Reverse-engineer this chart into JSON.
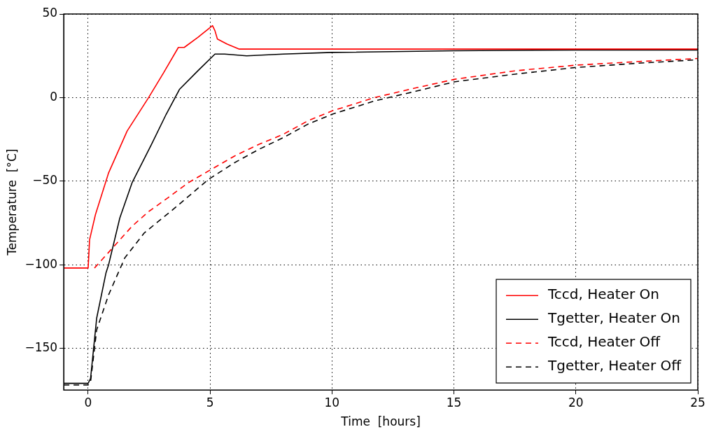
{
  "chart_data": {
    "type": "line",
    "xlabel": "Time  [hours]",
    "ylabel": "Temperature  [°C]",
    "xlim": [
      -1,
      25
    ],
    "ylim": [
      -175,
      50
    ],
    "xticks": [
      0,
      5,
      10,
      15,
      20,
      25
    ],
    "yticks": [
      -150,
      -100,
      -50,
      0,
      50
    ],
    "grid": true,
    "legend": "bottom right",
    "marker": "none",
    "series": [
      {
        "name": "Tccd, Heater On",
        "color": "#ff0000",
        "line_style": "solid",
        "x": [
          -1,
          0,
          0.06,
          0.3,
          0.84,
          1.6,
          2.48,
          3.1,
          3.7,
          3.94,
          4.5,
          5.1,
          5.2,
          5.3,
          5.7,
          6.2,
          10,
          15,
          20,
          25
        ],
        "values": [
          -102,
          -102,
          -85,
          -70,
          -45,
          -20,
          0,
          15,
          30,
          30,
          36,
          43,
          40,
          35,
          32,
          29,
          29,
          29,
          29,
          29
        ]
      },
      {
        "name": "Tgetter, Heater On",
        "color": "#000000",
        "line_style": "solid",
        "x": [
          -1,
          0,
          0.1,
          0.35,
          0.73,
          0.84,
          1.3,
          1.8,
          2.6,
          3.2,
          3.75,
          4.5,
          5.2,
          5.6,
          6.5,
          8,
          10,
          15,
          20,
          25
        ],
        "values": [
          -171,
          -171,
          -168,
          -132,
          -105,
          -100,
          -72,
          -51,
          -28,
          -10,
          5,
          16,
          26,
          26,
          25,
          26,
          27,
          28,
          28.5,
          28.5
        ]
      },
      {
        "name": "Tccd, Heater Off",
        "color": "#ff0000",
        "line_style": "dashed",
        "x": [
          0.26,
          1,
          1.8,
          2.5,
          3.27,
          4.1,
          4.93,
          6,
          7,
          8,
          9,
          10,
          11.75,
          13.5,
          15.05,
          17.5,
          20,
          22.5,
          25
        ],
        "values": [
          -102,
          -90,
          -77,
          -68,
          -60,
          -51,
          -44,
          -35,
          -28,
          -22,
          -14,
          -8,
          0,
          6,
          11,
          16,
          19.4,
          21.5,
          23.4
        ]
      },
      {
        "name": "Tgetter, Heater Off",
        "color": "#000000",
        "line_style": "dashed",
        "x": [
          -1,
          0,
          0.1,
          0.35,
          0.84,
          1.5,
          2.3,
          3.56,
          4.93,
          6,
          7,
          8,
          9,
          10,
          11.75,
          13.5,
          15.05,
          17.5,
          20,
          22.5,
          25
        ],
        "values": [
          -172,
          -172,
          -170,
          -139,
          -118,
          -96,
          -81,
          -66,
          -49,
          -39,
          -31,
          -24,
          -16,
          -10,
          -2,
          4,
          9.5,
          14,
          18,
          20.5,
          22.6
        ]
      }
    ]
  }
}
